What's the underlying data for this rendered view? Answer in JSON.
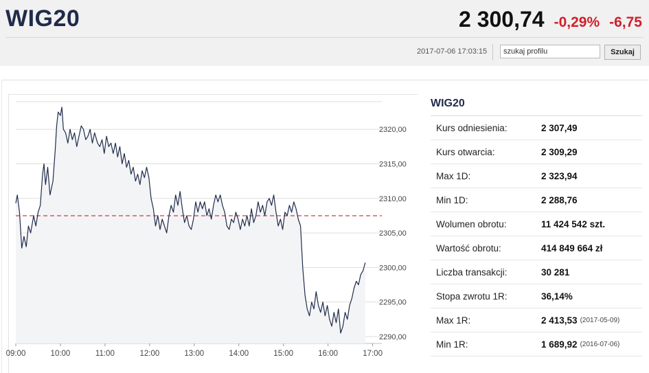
{
  "header": {
    "title": "WIG20",
    "price": "2 300,74",
    "change_pct": "-0,29%",
    "change_abs": "-6,75",
    "timestamp": "2017-07-06 17:03:15",
    "search_placeholder": "szukaj profilu",
    "search_button": "Szukaj",
    "colors": {
      "negative": "#d0202a",
      "title": "#1f2b4a"
    }
  },
  "stats": {
    "title": "WIG20",
    "rows": [
      {
        "label": "Kurs odniesienia:",
        "value": "2 307,49",
        "date": ""
      },
      {
        "label": "Kurs otwarcia:",
        "value": "2 309,29",
        "date": ""
      },
      {
        "label": "Max 1D:",
        "value": "2 323,94",
        "date": ""
      },
      {
        "label": "Min 1D:",
        "value": "2 288,76",
        "date": ""
      },
      {
        "label": "Wolumen obrotu:",
        "value": "11 424 542 szt.",
        "date": ""
      },
      {
        "label": "Wartość obrotu:",
        "value": "414 849 664 zł",
        "date": ""
      },
      {
        "label": "Liczba transakcji:",
        "value": "30 281",
        "date": ""
      },
      {
        "label": "Stopa zwrotu 1R:",
        "value": "36,14%",
        "date": ""
      },
      {
        "label": "Max 1R:",
        "value": "2 413,53",
        "date": "(2017-05-09)"
      },
      {
        "label": "Min 1R:",
        "value": "1 689,92",
        "date": "(2016-07-06)"
      }
    ]
  },
  "chart_data": {
    "type": "line",
    "title": "",
    "xlabel": "",
    "ylabel": "",
    "x_ticks": [
      "09:00",
      "10:00",
      "11:00",
      "12:00",
      "13:00",
      "14:00",
      "15:00",
      "16:00",
      "17:00"
    ],
    "y_ticks": [
      "2290,00",
      "2295,00",
      "2300,00",
      "2305,00",
      "2310,00",
      "2315,00",
      "2320,00"
    ],
    "ylim": [
      2289,
      2324
    ],
    "xlim": [
      "09:00",
      "17:05"
    ],
    "reference_line": 2307.49,
    "colors": {
      "line": "#1f2b4a",
      "fill": "#f3f4f6",
      "reference": "#d0202a",
      "grid": "#dddddd"
    },
    "grid": true,
    "series": [
      {
        "values": [
          [
            "09:00",
            2309.3
          ],
          [
            "09:02",
            2310.5
          ],
          [
            "09:05",
            2308.0
          ],
          [
            "09:08",
            2302.8
          ],
          [
            "09:11",
            2304.5
          ],
          [
            "09:14",
            2303.0
          ],
          [
            "09:17",
            2306.0
          ],
          [
            "09:20",
            2305.0
          ],
          [
            "09:24",
            2307.5
          ],
          [
            "09:27",
            2306.0
          ],
          [
            "09:30",
            2308.0
          ],
          [
            "09:33",
            2309.0
          ],
          [
            "09:36",
            2313.5
          ],
          [
            "09:38",
            2315.0
          ],
          [
            "09:40",
            2312.0
          ],
          [
            "09:43",
            2314.5
          ],
          [
            "09:46",
            2310.5
          ],
          [
            "09:50",
            2312.5
          ],
          [
            "09:53",
            2317.0
          ],
          [
            "09:55",
            2320.5
          ],
          [
            "09:57",
            2322.5
          ],
          [
            "10:00",
            2322.0
          ],
          [
            "10:02",
            2323.2
          ],
          [
            "10:04",
            2320.0
          ],
          [
            "10:07",
            2319.5
          ],
          [
            "10:10",
            2318.0
          ],
          [
            "10:13",
            2320.0
          ],
          [
            "10:16",
            2318.5
          ],
          [
            "10:19",
            2319.5
          ],
          [
            "10:22",
            2317.5
          ],
          [
            "10:25",
            2319.0
          ],
          [
            "10:28",
            2320.5
          ],
          [
            "10:31",
            2320.0
          ],
          [
            "10:34",
            2318.5
          ],
          [
            "10:37",
            2319.0
          ],
          [
            "10:40",
            2320.0
          ],
          [
            "10:43",
            2318.0
          ],
          [
            "10:46",
            2319.5
          ],
          [
            "10:50",
            2318.0
          ],
          [
            "10:53",
            2317.5
          ],
          [
            "10:56",
            2318.5
          ],
          [
            "10:59",
            2316.5
          ],
          [
            "11:02",
            2319.0
          ],
          [
            "11:05",
            2317.5
          ],
          [
            "11:08",
            2318.0
          ],
          [
            "11:11",
            2316.5
          ],
          [
            "11:14",
            2318.0
          ],
          [
            "11:17",
            2316.0
          ],
          [
            "11:20",
            2317.5
          ],
          [
            "11:23",
            2315.0
          ],
          [
            "11:26",
            2316.5
          ],
          [
            "11:29",
            2314.5
          ],
          [
            "11:32",
            2315.5
          ],
          [
            "11:35",
            2313.5
          ],
          [
            "11:38",
            2314.5
          ],
          [
            "11:41",
            2312.5
          ],
          [
            "11:44",
            2313.5
          ],
          [
            "11:47",
            2312.0
          ],
          [
            "11:50",
            2314.0
          ],
          [
            "11:53",
            2313.0
          ],
          [
            "11:56",
            2314.5
          ],
          [
            "11:59",
            2313.0
          ],
          [
            "12:02",
            2310.0
          ],
          [
            "12:05",
            2308.5
          ],
          [
            "12:08",
            2306.0
          ],
          [
            "12:11",
            2307.5
          ],
          [
            "12:14",
            2305.5
          ],
          [
            "12:17",
            2307.0
          ],
          [
            "12:20",
            2306.0
          ],
          [
            "12:23",
            2305.0
          ],
          [
            "12:26",
            2307.5
          ],
          [
            "12:29",
            2309.0
          ],
          [
            "12:32",
            2308.0
          ],
          [
            "12:35",
            2310.5
          ],
          [
            "12:38",
            2309.0
          ],
          [
            "12:41",
            2311.0
          ],
          [
            "12:44",
            2308.5
          ],
          [
            "12:47",
            2306.5
          ],
          [
            "12:50",
            2307.5
          ],
          [
            "12:53",
            2306.0
          ],
          [
            "12:56",
            2305.5
          ],
          [
            "12:59",
            2307.0
          ],
          [
            "13:02",
            2309.5
          ],
          [
            "13:05",
            2308.0
          ],
          [
            "13:08",
            2309.5
          ],
          [
            "13:11",
            2308.5
          ],
          [
            "13:14",
            2309.5
          ],
          [
            "13:17",
            2307.5
          ],
          [
            "13:20",
            2308.5
          ],
          [
            "13:23",
            2307.0
          ],
          [
            "13:26",
            2309.0
          ],
          [
            "13:29",
            2310.5
          ],
          [
            "13:32",
            2309.5
          ],
          [
            "13:35",
            2310.5
          ],
          [
            "13:38",
            2309.0
          ],
          [
            "13:41",
            2308.0
          ],
          [
            "13:44",
            2306.0
          ],
          [
            "13:47",
            2305.5
          ],
          [
            "13:50",
            2307.0
          ],
          [
            "13:53",
            2306.5
          ],
          [
            "13:56",
            2308.0
          ],
          [
            "13:59",
            2307.0
          ],
          [
            "14:02",
            2305.5
          ],
          [
            "14:05",
            2307.0
          ],
          [
            "14:08",
            2306.0
          ],
          [
            "14:11",
            2307.5
          ],
          [
            "14:14",
            2306.0
          ],
          [
            "14:17",
            2308.5
          ],
          [
            "14:20",
            2306.5
          ],
          [
            "14:23",
            2307.5
          ],
          [
            "14:26",
            2309.5
          ],
          [
            "14:29",
            2308.0
          ],
          [
            "14:32",
            2309.0
          ],
          [
            "14:35",
            2307.5
          ],
          [
            "14:38",
            2309.5
          ],
          [
            "14:41",
            2310.0
          ],
          [
            "14:44",
            2309.0
          ],
          [
            "14:47",
            2310.5
          ],
          [
            "14:50",
            2308.0
          ],
          [
            "14:53",
            2306.0
          ],
          [
            "14:56",
            2307.0
          ],
          [
            "14:59",
            2305.5
          ],
          [
            "15:02",
            2308.0
          ],
          [
            "15:05",
            2307.5
          ],
          [
            "15:08",
            2309.0
          ],
          [
            "15:11",
            2308.0
          ],
          [
            "15:14",
            2309.5
          ],
          [
            "15:17",
            2308.5
          ],
          [
            "15:20",
            2307.0
          ],
          [
            "15:23",
            2306.0
          ],
          [
            "15:26",
            2300.0
          ],
          [
            "15:29",
            2296.0
          ],
          [
            "15:32",
            2294.0
          ],
          [
            "15:35",
            2293.0
          ],
          [
            "15:38",
            2295.0
          ],
          [
            "15:41",
            2294.0
          ],
          [
            "15:44",
            2296.5
          ],
          [
            "15:47",
            2294.5
          ],
          [
            "15:50",
            2293.5
          ],
          [
            "15:53",
            2295.0
          ],
          [
            "15:56",
            2293.0
          ],
          [
            "15:59",
            2294.5
          ],
          [
            "16:02",
            2292.5
          ],
          [
            "16:05",
            2291.5
          ],
          [
            "16:08",
            2293.5
          ],
          [
            "16:11",
            2292.0
          ],
          [
            "16:14",
            2294.0
          ],
          [
            "16:17",
            2290.5
          ],
          [
            "16:20",
            2291.5
          ],
          [
            "16:23",
            2293.5
          ],
          [
            "16:26",
            2292.5
          ],
          [
            "16:29",
            2294.5
          ],
          [
            "16:32",
            2295.5
          ],
          [
            "16:35",
            2297.0
          ],
          [
            "16:38",
            2298.0
          ],
          [
            "16:41",
            2297.5
          ],
          [
            "16:44",
            2299.0
          ],
          [
            "16:47",
            2299.5
          ],
          [
            "16:50",
            2300.7
          ]
        ]
      }
    ]
  }
}
